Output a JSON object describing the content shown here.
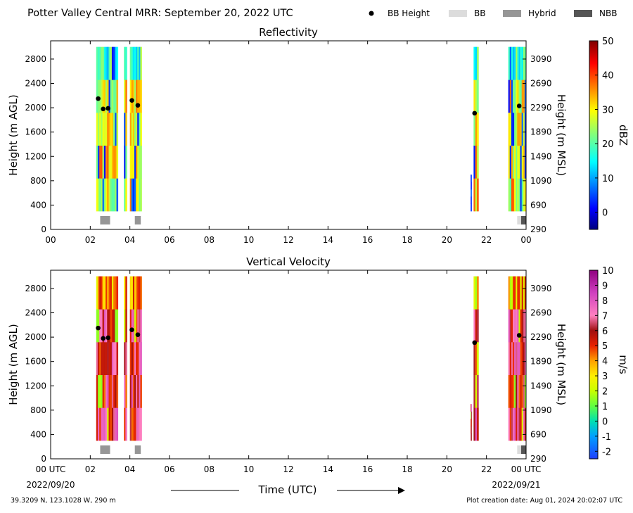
{
  "header": {
    "title": "Potter Valley Central MRR:  September 20, 2022 UTC",
    "legend": [
      {
        "label": "BB Height",
        "kind": "dot",
        "color": "#000000"
      },
      {
        "label": "BB",
        "kind": "box",
        "color": "#dcdcdc"
      },
      {
        "label": "Hybrid",
        "kind": "box",
        "color": "#969696"
      },
      {
        "label": "NBB",
        "kind": "box",
        "color": "#555555"
      }
    ]
  },
  "footer": {
    "location": "39.3209 N, 123.1028 W, 290 m",
    "created": "Plot creation date: Aug 01, 2024 20:02:07 UTC",
    "time_label": "Time (UTC)",
    "date_start": "2022/09/20",
    "date_end": "2022/09/21"
  },
  "chart_data": [
    {
      "type": "heatmap",
      "title": "Reflectivity",
      "ylabel": "Height (m AGL)",
      "ylabel_right": "Height (m MSL)",
      "colorbar_label": "dBZ",
      "xlim": [
        0,
        24
      ],
      "ylim": [
        0,
        3100
      ],
      "x_ticks": [
        "00",
        "02",
        "04",
        "06",
        "08",
        "10",
        "12",
        "14",
        "16",
        "18",
        "20",
        "22",
        "00"
      ],
      "y_ticks": [
        0,
        400,
        800,
        1200,
        1600,
        2000,
        2400,
        2800
      ],
      "y_ticks_right": [
        290,
        690,
        1090,
        1490,
        1890,
        2290,
        2690,
        3090
      ],
      "colorbar_ticks": [
        0,
        10,
        20,
        30,
        40,
        50
      ],
      "colorbar_range": [
        -5,
        50
      ],
      "data_windows": [
        {
          "start": 2.3,
          "end": 3.4,
          "top": 3000,
          "bottom": 300
        },
        {
          "start": 3.7,
          "end": 3.85,
          "top": 3000,
          "bottom": 300
        },
        {
          "start": 4.0,
          "end": 4.6,
          "top": 3000,
          "bottom": 300
        },
        {
          "start": 21.35,
          "end": 21.6,
          "top": 3000,
          "bottom": 300
        },
        {
          "start": 21.2,
          "end": 21.25,
          "top": 900,
          "bottom": 300
        },
        {
          "start": 23.1,
          "end": 24.0,
          "top": 3000,
          "bottom": 300
        }
      ],
      "bright_band_heights": [
        {
          "time": 2.4,
          "height": 2150
        },
        {
          "time": 2.65,
          "height": 1980
        },
        {
          "time": 2.9,
          "height": 1990
        },
        {
          "time": 4.1,
          "height": 2120
        },
        {
          "time": 4.4,
          "height": 2040
        },
        {
          "time": 21.4,
          "height": 1910
        },
        {
          "time": 23.65,
          "height": 2030
        }
      ],
      "bb_type_bars": [
        {
          "start": 2.5,
          "end": 3.0,
          "kind": "Hybrid"
        },
        {
          "start": 4.25,
          "end": 4.55,
          "kind": "Hybrid"
        },
        {
          "start": 23.55,
          "end": 23.75,
          "kind": "BB"
        },
        {
          "start": 23.75,
          "end": 24.0,
          "kind": "NBB"
        }
      ]
    },
    {
      "type": "heatmap",
      "title": "Vertical Velocity",
      "ylabel": "Height (m AGL)",
      "ylabel_right": "Height (m MSL)",
      "colorbar_label": "m/s",
      "xlim": [
        0,
        24
      ],
      "ylim": [
        0,
        3100
      ],
      "x_ticks": [
        "00 UTC",
        "02",
        "04",
        "06",
        "08",
        "10",
        "12",
        "14",
        "16",
        "18",
        "20",
        "22",
        "00 UTC"
      ],
      "y_ticks": [
        0,
        400,
        800,
        1200,
        1600,
        2000,
        2400,
        2800
      ],
      "y_ticks_right": [
        290,
        690,
        1090,
        1490,
        1890,
        2290,
        2690,
        3090
      ],
      "colorbar_ticks": [
        -2,
        -1,
        0,
        1,
        2,
        3,
        4,
        5,
        6,
        7,
        8,
        9,
        10
      ],
      "colorbar_range": [
        -2.5,
        10
      ],
      "data_windows": [
        {
          "start": 2.3,
          "end": 3.4,
          "top": 3000,
          "bottom": 300
        },
        {
          "start": 3.7,
          "end": 3.85,
          "top": 3000,
          "bottom": 300
        },
        {
          "start": 4.0,
          "end": 4.6,
          "top": 3000,
          "bottom": 300
        },
        {
          "start": 21.35,
          "end": 21.6,
          "top": 3000,
          "bottom": 300
        },
        {
          "start": 21.2,
          "end": 21.25,
          "top": 900,
          "bottom": 300
        },
        {
          "start": 23.1,
          "end": 24.0,
          "top": 3000,
          "bottom": 300
        }
      ],
      "bright_band_heights": [
        {
          "time": 2.4,
          "height": 2150
        },
        {
          "time": 2.65,
          "height": 1980
        },
        {
          "time": 2.9,
          "height": 1990
        },
        {
          "time": 4.1,
          "height": 2120
        },
        {
          "time": 4.4,
          "height": 2040
        },
        {
          "time": 21.4,
          "height": 1910
        },
        {
          "time": 23.65,
          "height": 2030
        }
      ],
      "bb_type_bars": [
        {
          "start": 2.5,
          "end": 3.0,
          "kind": "Hybrid"
        },
        {
          "start": 4.25,
          "end": 4.55,
          "kind": "Hybrid"
        },
        {
          "start": 23.55,
          "end": 23.75,
          "kind": "BB"
        },
        {
          "start": 23.75,
          "end": 24.0,
          "kind": "NBB"
        }
      ]
    }
  ]
}
